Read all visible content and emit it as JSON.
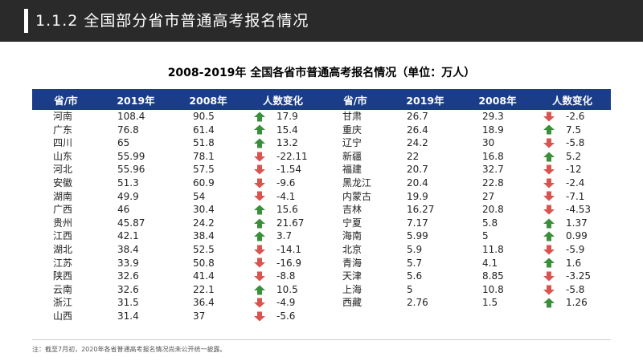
{
  "header": {
    "title": "1.1.2 全国部分省市普通高考报名情况"
  },
  "table_title": "2008-2019年 全国各省市普通高考报名情况（单位：万人）",
  "columns": [
    "省/市",
    "2019年",
    "2008年",
    "人数变化"
  ],
  "colors": {
    "header_bg": "#1b3d89",
    "up_arrow": "#3a8f3a",
    "down_arrow": "#d9534f"
  },
  "left_rows": [
    {
      "prov": "河南",
      "y2019": "108.4",
      "y2008": "90.5",
      "dir": "up",
      "change": "17.9"
    },
    {
      "prov": "广东",
      "y2019": "76.8",
      "y2008": "61.4",
      "dir": "up",
      "change": "15.4"
    },
    {
      "prov": "四川",
      "y2019": "65",
      "y2008": "51.8",
      "dir": "up",
      "change": "13.2"
    },
    {
      "prov": "山东",
      "y2019": "55.99",
      "y2008": "78.1",
      "dir": "down",
      "change": "-22.11"
    },
    {
      "prov": "河北",
      "y2019": "55.96",
      "y2008": "57.5",
      "dir": "down",
      "change": "-1.54"
    },
    {
      "prov": "安徽",
      "y2019": "51.3",
      "y2008": "60.9",
      "dir": "down",
      "change": "-9.6"
    },
    {
      "prov": "湖南",
      "y2019": "49.9",
      "y2008": "54",
      "dir": "down",
      "change": "-4.1"
    },
    {
      "prov": "广西",
      "y2019": "46",
      "y2008": "30.4",
      "dir": "up",
      "change": "15.6"
    },
    {
      "prov": "贵州",
      "y2019": "45.87",
      "y2008": "24.2",
      "dir": "up",
      "change": "21.67"
    },
    {
      "prov": "江西",
      "y2019": "42.1",
      "y2008": "38.4",
      "dir": "up",
      "change": "3.7"
    },
    {
      "prov": "湖北",
      "y2019": "38.4",
      "y2008": "52.5",
      "dir": "down",
      "change": "-14.1"
    },
    {
      "prov": "江苏",
      "y2019": "33.9",
      "y2008": "50.8",
      "dir": "down",
      "change": "-16.9"
    },
    {
      "prov": "陕西",
      "y2019": "32.6",
      "y2008": "41.4",
      "dir": "down",
      "change": "-8.8"
    },
    {
      "prov": "云南",
      "y2019": "32.6",
      "y2008": "22.1",
      "dir": "up",
      "change": "10.5"
    },
    {
      "prov": "浙江",
      "y2019": "31.5",
      "y2008": "36.4",
      "dir": "down",
      "change": "-4.9"
    },
    {
      "prov": "山西",
      "y2019": "31.4",
      "y2008": "37",
      "dir": "down",
      "change": "-5.6"
    }
  ],
  "right_rows": [
    {
      "prov": "甘肃",
      "y2019": "26.7",
      "y2008": "29.3",
      "dir": "down",
      "change": "-2.6"
    },
    {
      "prov": "重庆",
      "y2019": "26.4",
      "y2008": "18.9",
      "dir": "up",
      "change": "7.5"
    },
    {
      "prov": "辽宁",
      "y2019": "24.2",
      "y2008": "30",
      "dir": "down",
      "change": "-5.8"
    },
    {
      "prov": "新疆",
      "y2019": "22",
      "y2008": "16.8",
      "dir": "up",
      "change": "5.2"
    },
    {
      "prov": "福建",
      "y2019": "20.7",
      "y2008": "32.7",
      "dir": "down",
      "change": "-12"
    },
    {
      "prov": "黑龙江",
      "y2019": "20.4",
      "y2008": "22.8",
      "dir": "down",
      "change": "-2.4"
    },
    {
      "prov": "内蒙古",
      "y2019": "19.9",
      "y2008": "27",
      "dir": "down",
      "change": "-7.1"
    },
    {
      "prov": "吉林",
      "y2019": "16.27",
      "y2008": "20.8",
      "dir": "down",
      "change": "-4.53"
    },
    {
      "prov": "宁夏",
      "y2019": "7.17",
      "y2008": "5.8",
      "dir": "up",
      "change": "1.37"
    },
    {
      "prov": "海南",
      "y2019": "5.99",
      "y2008": "5",
      "dir": "up",
      "change": "0.99"
    },
    {
      "prov": "北京",
      "y2019": "5.9",
      "y2008": "11.8",
      "dir": "down",
      "change": "-5.9"
    },
    {
      "prov": "青海",
      "y2019": "5.7",
      "y2008": "4.1",
      "dir": "up",
      "change": "1.6"
    },
    {
      "prov": "天津",
      "y2019": "5.6",
      "y2008": "8.85",
      "dir": "down",
      "change": "-3.25"
    },
    {
      "prov": "上海",
      "y2019": "5",
      "y2008": "10.8",
      "dir": "down",
      "change": "-5.8"
    },
    {
      "prov": "西藏",
      "y2019": "2.76",
      "y2008": "1.5",
      "dir": "up",
      "change": "1.26"
    }
  ],
  "footnote": "注：截至7月初，2020年各省普通高考报名情况尚未公开统一披露。"
}
